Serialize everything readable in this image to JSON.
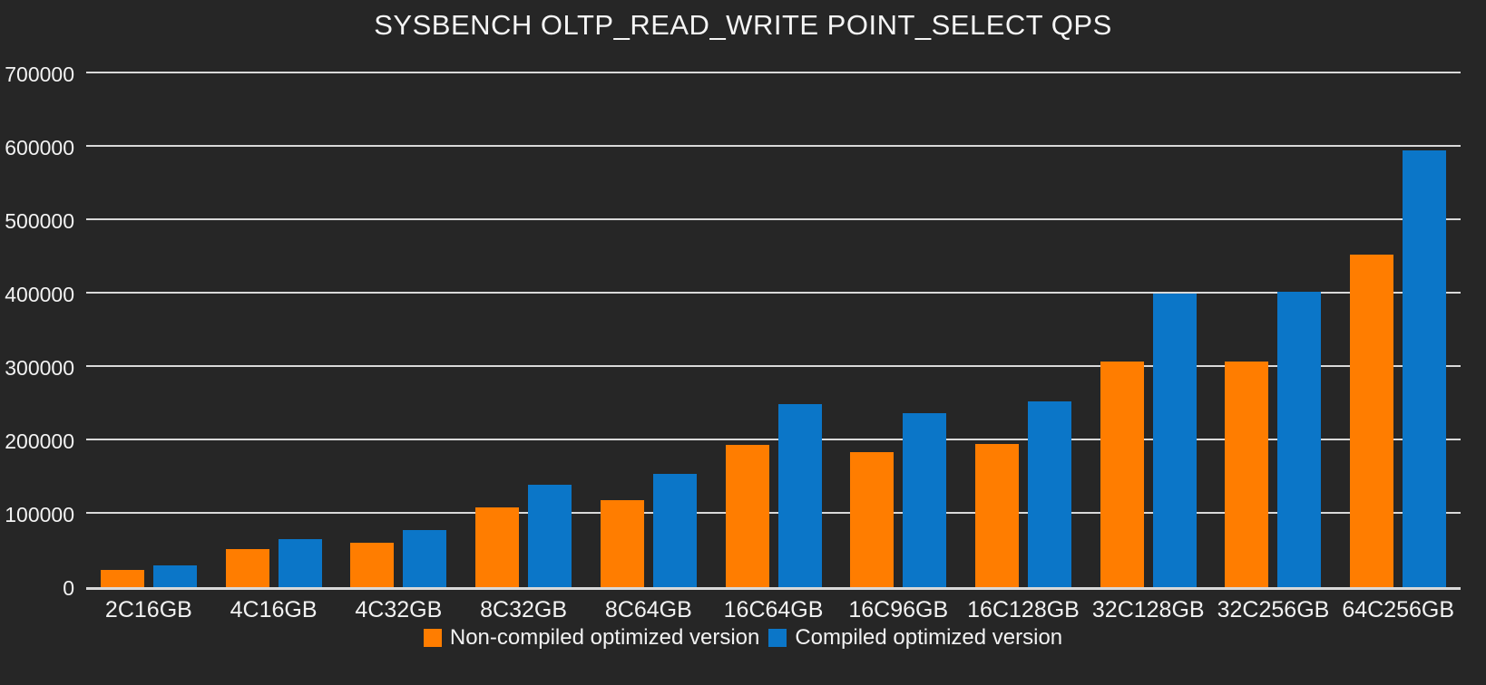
{
  "colors": {
    "background": "#262626",
    "grid": "#d9d9d9",
    "text": "#f2f2f2",
    "series_orange": "#ff7d00",
    "series_blue": "#0b76c8"
  },
  "chart_data": {
    "type": "bar",
    "title": "SYSBENCH OLTP_READ_WRITE POINT_SELECT QPS",
    "xlabel": "",
    "ylabel": "",
    "categories": [
      "2C16GB",
      "4C16GB",
      "4C32GB",
      "8C32GB",
      "8C64GB",
      "16C64GB",
      "16C96GB",
      "16C128GB",
      "32C128GB",
      "32C256GB",
      "64C256GB"
    ],
    "series": [
      {
        "name": "Non-compiled optimized version",
        "color": "#ff7d00",
        "values": [
          23500,
          52000,
          61000,
          108500,
          119000,
          194000,
          184000,
          195500,
          307000,
          307000,
          453000
        ]
      },
      {
        "name": "Compiled optimized version",
        "color": "#0b76c8",
        "values": [
          29500,
          65500,
          78000,
          139000,
          154000,
          249000,
          237500,
          253500,
          400000,
          402500,
          595000
        ]
      }
    ],
    "ylim": [
      0,
      700000
    ],
    "yticks": [
      0,
      100000,
      200000,
      300000,
      400000,
      500000,
      600000,
      700000
    ],
    "grid": true,
    "legend_position": "bottom"
  }
}
